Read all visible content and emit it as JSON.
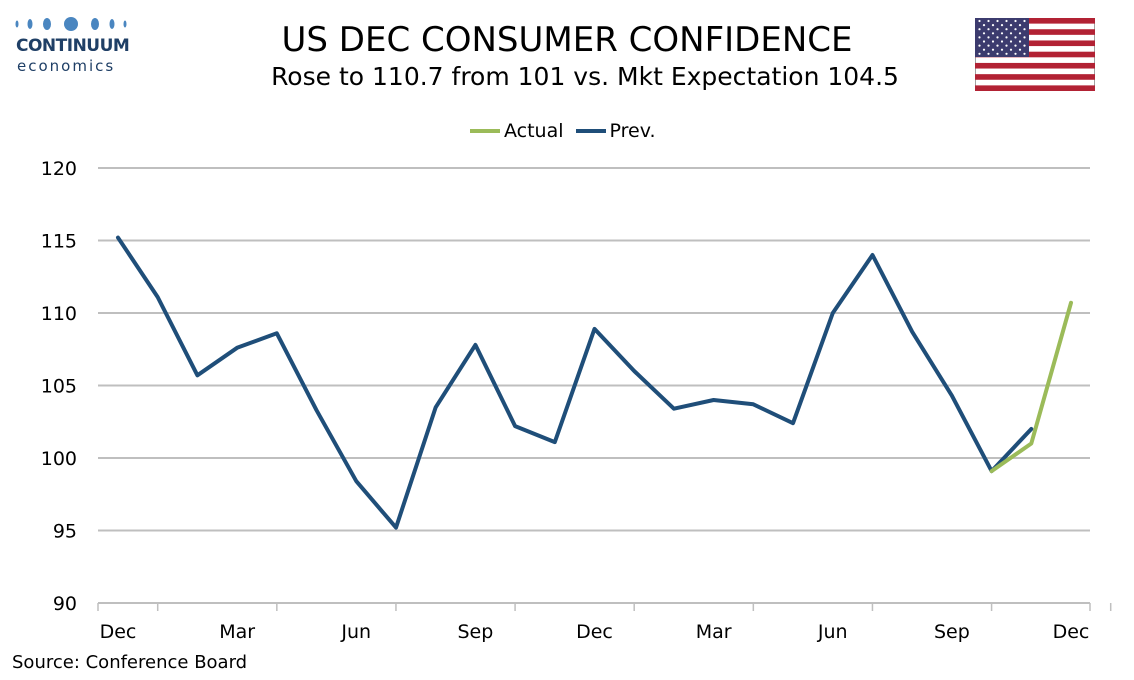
{
  "logo": {
    "name_line1": "CONTINUUM",
    "name_line2": "economics",
    "color": "#1f3f66",
    "dot_color": "#4a86c0"
  },
  "header": {
    "title": "US DEC CONSUMER CONFIDENCE",
    "subtitle": "Rose to 110.7 from 101 vs. Mkt Expectation 104.5"
  },
  "flag": {
    "icon": "us-flag-icon"
  },
  "source": "Source: Conference Board",
  "chart_data": {
    "type": "line",
    "x": [
      "Dec",
      "Jan",
      "Feb",
      "Mar",
      "Apr",
      "May",
      "Jun",
      "Jul",
      "Aug",
      "Sep",
      "Oct",
      "Nov",
      "Dec",
      "Jan",
      "Feb",
      "Mar",
      "Apr",
      "May",
      "Jun",
      "Jul",
      "Aug",
      "Sep",
      "Oct",
      "Nov",
      "Dec"
    ],
    "tick_labels": [
      "Dec",
      "Mar",
      "Jun",
      "Sep",
      "Dec",
      "Mar",
      "Jun",
      "Sep",
      "Dec"
    ],
    "series": [
      {
        "name": "Actual",
        "color": "#9bbb59",
        "values": [
          null,
          null,
          null,
          null,
          null,
          null,
          null,
          null,
          null,
          null,
          null,
          null,
          null,
          null,
          null,
          null,
          null,
          null,
          null,
          null,
          null,
          null,
          99.1,
          101.0,
          110.7
        ]
      },
      {
        "name": "Prev.",
        "color": "#1f4e79",
        "values": [
          115.2,
          111.1,
          105.7,
          107.6,
          108.6,
          103.3,
          98.4,
          95.2,
          103.5,
          107.8,
          102.2,
          101.1,
          108.9,
          106.0,
          103.4,
          104.0,
          103.7,
          102.4,
          110.0,
          114.0,
          108.7,
          104.3,
          99.1,
          102.0,
          null
        ]
      }
    ],
    "xlabel": "",
    "ylabel": "",
    "ylim": [
      90,
      120
    ],
    "yticks": [
      90,
      95,
      100,
      105,
      110,
      115,
      120
    ],
    "grid": true,
    "legend": "top-center"
  }
}
